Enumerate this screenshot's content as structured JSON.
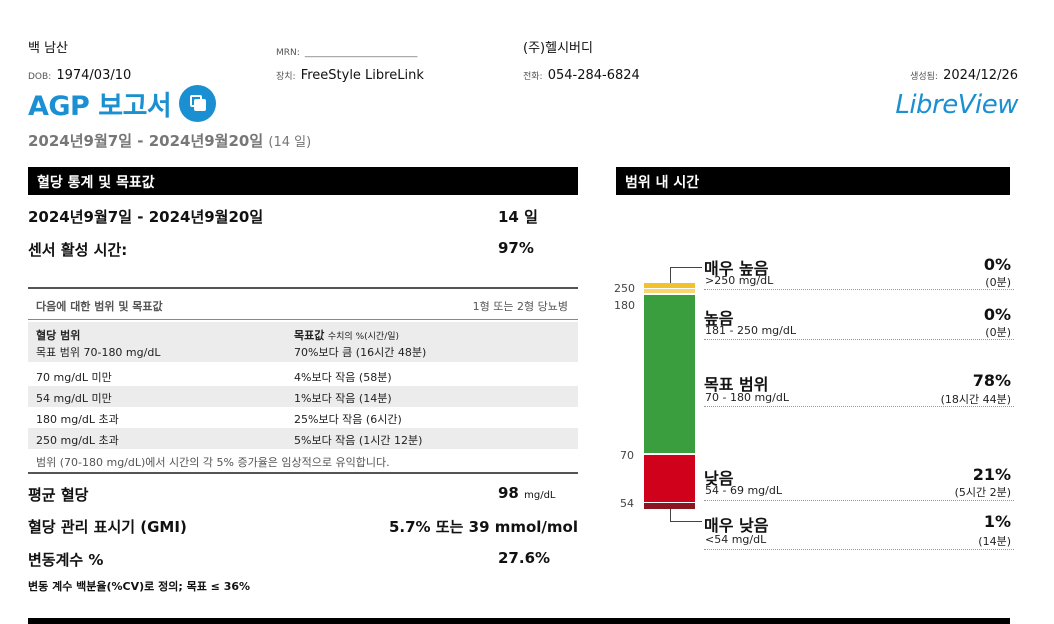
{
  "header": {
    "patient_name": "백 남산",
    "mrn_label": "MRN:",
    "mrn_value": "_________________________",
    "clinic": "(주)헬시버디",
    "dob_label": "DOB:",
    "dob_value": "1974/03/10",
    "device_label": "장치:",
    "device_value": "FreeStyle LibreLink",
    "phone_label": "전화:",
    "phone_value": "054-284-6824",
    "generated_label": "생성됨:",
    "generated_value": "2024/12/26",
    "title": "AGP 보고서",
    "copy_icon": "copy-icon",
    "logo": "LibreView",
    "brand_color": "#1a8fd1",
    "date_range": "2024년9월7일 - 2024년9월20일",
    "days": "(14 일)"
  },
  "stats": {
    "section_title": "혈당 통계 및 목표값",
    "period_label": "2024년9월7일 - 2024년9월20일",
    "period_value": "14 일",
    "sensor_label": "센서 활성 시간:",
    "sensor_value": "97%",
    "targets_title": "다음에 대한 범위 및 목표값",
    "targets_type": "1형 또는 2형 당뇨병",
    "col1_header": "혈당 범위",
    "col2_header": "목표값",
    "col2_header_sub": "수치의 %(시간/일)",
    "rows": [
      {
        "range": "목표 범위 70-180 mg/dL",
        "target": "70%보다 큼 (16시간 48분)"
      },
      {
        "range": "70 mg/dL 미만",
        "target": "4%보다 작음 (58분)"
      },
      {
        "range": "54 mg/dL 미만",
        "target": "1%보다 작음 (14분)"
      },
      {
        "range": "180 mg/dL 초과",
        "target": "25%보다 작음 (6시간)"
      },
      {
        "range": "250 mg/dL 초과",
        "target": "5%보다 작음 (1시간 12분)"
      }
    ],
    "footnote": "범위 (70-180 mg/dL)에서 시간의 각 5% 증가율은 임상적으로 유익합니다.",
    "avg_label": "평균 혈당",
    "avg_value": "98",
    "avg_unit": "mg/dL",
    "gmi_label": "혈당 관리 표시기 (GMI)",
    "gmi_value": "5.7% 또는 39 mmol/mol",
    "cv_label": "변동계수 %",
    "cv_value": "27.6%",
    "cv_note": "변동 계수 백분율(%CV)로 정의; 목표 ≤ 36%"
  },
  "tir": {
    "section_title": "범위 내 시간",
    "axis_ticks": [
      "250",
      "180",
      "70",
      "54"
    ],
    "bands": [
      {
        "name": "매우 높음",
        "sub": ">250 mg/dL",
        "pct": "0%",
        "time": "(0분)",
        "value": 0.5,
        "color": "#f2c12e"
      },
      {
        "name": "높음",
        "sub": "181 - 250 mg/dL",
        "pct": "0%",
        "time": "(0분)",
        "value": 0.5,
        "color": "#f5d76e"
      },
      {
        "name": "목표 범위",
        "sub": "70 - 180 mg/dL",
        "pct": "78%",
        "time": "(18시간 44분)",
        "value": 78,
        "color": "#3a9e3f"
      },
      {
        "name": "낮음",
        "sub": "54 - 69 mg/dL",
        "pct": "21%",
        "time": "(5시간 2분)",
        "value": 21,
        "color": "#d0021b"
      },
      {
        "name": "매우 낮음",
        "sub": "<54 mg/dL",
        "pct": "1%",
        "time": "(14분)",
        "value": 1,
        "color": "#8b1520"
      }
    ]
  }
}
